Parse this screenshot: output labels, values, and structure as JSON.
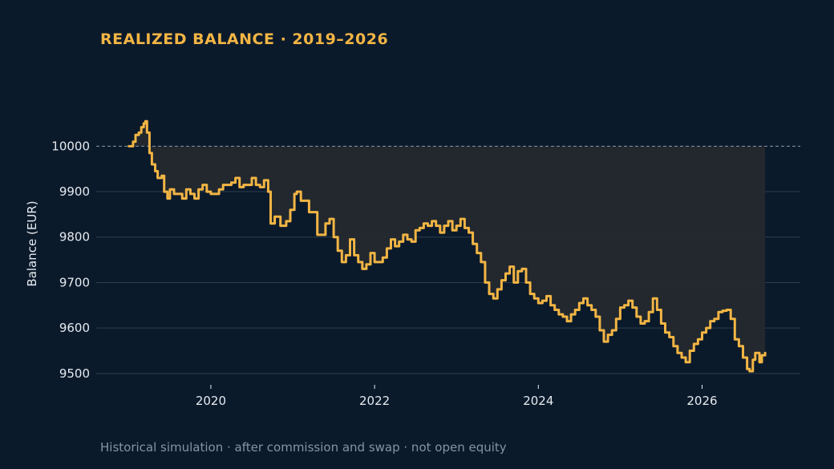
{
  "title": "REALIZED BALANCE · 2019–2026",
  "footnote": "Historical simulation · after commission and swap · not open equity",
  "colors": {
    "background": "#0b1a2b",
    "line": "#f2b544",
    "gap_fill": "#24292e",
    "grid": "#2e3d4e",
    "reference": "#8b97a6",
    "text": "#e6eaef"
  },
  "chart_data": {
    "type": "line",
    "ylabel": "Balance (EUR)",
    "xlabel": "",
    "xlim": [
      2018.6,
      2027.2
    ],
    "ylim": [
      9475,
      10110
    ],
    "x_ticks": [
      2020,
      2022,
      2024,
      2026
    ],
    "y_ticks": [
      9500,
      9600,
      9700,
      9800,
      9900,
      10000
    ],
    "grid": "horizontal",
    "reference_line": 10000,
    "shaded_gap_to_reference": true,
    "step": true,
    "series": [
      {
        "points": [
          [
            2019.0,
            10000
          ],
          [
            2019.05,
            10010
          ],
          [
            2019.08,
            10025
          ],
          [
            2019.12,
            10030
          ],
          [
            2019.15,
            10042
          ],
          [
            2019.18,
            10050
          ],
          [
            2019.2,
            10055
          ],
          [
            2019.22,
            10030
          ],
          [
            2019.25,
            9985
          ],
          [
            2019.28,
            9960
          ],
          [
            2019.32,
            9945
          ],
          [
            2019.35,
            9930
          ],
          [
            2019.4,
            9935
          ],
          [
            2019.43,
            9900
          ],
          [
            2019.47,
            9885
          ],
          [
            2019.5,
            9905
          ],
          [
            2019.55,
            9895
          ],
          [
            2019.6,
            9895
          ],
          [
            2019.65,
            9885
          ],
          [
            2019.7,
            9905
          ],
          [
            2019.75,
            9895
          ],
          [
            2019.8,
            9885
          ],
          [
            2019.85,
            9905
          ],
          [
            2019.9,
            9915
          ],
          [
            2019.95,
            9900
          ],
          [
            2020.0,
            9895
          ],
          [
            2020.1,
            9905
          ],
          [
            2020.15,
            9915
          ],
          [
            2020.25,
            9920
          ],
          [
            2020.3,
            9930
          ],
          [
            2020.35,
            9910
          ],
          [
            2020.4,
            9915
          ],
          [
            2020.5,
            9930
          ],
          [
            2020.55,
            9915
          ],
          [
            2020.6,
            9910
          ],
          [
            2020.65,
            9925
          ],
          [
            2020.7,
            9900
          ],
          [
            2020.73,
            9830
          ],
          [
            2020.78,
            9845
          ],
          [
            2020.85,
            9825
          ],
          [
            2020.92,
            9835
          ],
          [
            2020.97,
            9860
          ],
          [
            2021.02,
            9895
          ],
          [
            2021.05,
            9900
          ],
          [
            2021.1,
            9880
          ],
          [
            2021.2,
            9855
          ],
          [
            2021.3,
            9805
          ],
          [
            2021.4,
            9830
          ],
          [
            2021.45,
            9840
          ],
          [
            2021.5,
            9800
          ],
          [
            2021.55,
            9770
          ],
          [
            2021.6,
            9745
          ],
          [
            2021.65,
            9760
          ],
          [
            2021.7,
            9795
          ],
          [
            2021.75,
            9760
          ],
          [
            2021.8,
            9745
          ],
          [
            2021.85,
            9730
          ],
          [
            2021.9,
            9740
          ],
          [
            2021.95,
            9765
          ],
          [
            2022.0,
            9745
          ],
          [
            2022.1,
            9755
          ],
          [
            2022.15,
            9775
          ],
          [
            2022.2,
            9795
          ],
          [
            2022.25,
            9780
          ],
          [
            2022.3,
            9790
          ],
          [
            2022.35,
            9805
          ],
          [
            2022.4,
            9795
          ],
          [
            2022.45,
            9790
          ],
          [
            2022.5,
            9815
          ],
          [
            2022.55,
            9820
          ],
          [
            2022.6,
            9830
          ],
          [
            2022.65,
            9825
          ],
          [
            2022.7,
            9835
          ],
          [
            2022.75,
            9825
          ],
          [
            2022.8,
            9810
          ],
          [
            2022.85,
            9825
          ],
          [
            2022.9,
            9835
          ],
          [
            2022.95,
            9815
          ],
          [
            2023.0,
            9825
          ],
          [
            2023.05,
            9840
          ],
          [
            2023.1,
            9820
          ],
          [
            2023.15,
            9810
          ],
          [
            2023.2,
            9785
          ],
          [
            2023.25,
            9765
          ],
          [
            2023.3,
            9745
          ],
          [
            2023.35,
            9700
          ],
          [
            2023.4,
            9675
          ],
          [
            2023.45,
            9665
          ],
          [
            2023.5,
            9685
          ],
          [
            2023.55,
            9705
          ],
          [
            2023.6,
            9720
          ],
          [
            2023.65,
            9735
          ],
          [
            2023.7,
            9700
          ],
          [
            2023.75,
            9725
          ],
          [
            2023.8,
            9730
          ],
          [
            2023.85,
            9700
          ],
          [
            2023.9,
            9675
          ],
          [
            2023.95,
            9665
          ],
          [
            2024.0,
            9655
          ],
          [
            2024.05,
            9660
          ],
          [
            2024.1,
            9670
          ],
          [
            2024.15,
            9650
          ],
          [
            2024.2,
            9640
          ],
          [
            2024.25,
            9630
          ],
          [
            2024.3,
            9625
          ],
          [
            2024.35,
            9615
          ],
          [
            2024.4,
            9630
          ],
          [
            2024.45,
            9640
          ],
          [
            2024.5,
            9655
          ],
          [
            2024.55,
            9665
          ],
          [
            2024.6,
            9650
          ],
          [
            2024.65,
            9640
          ],
          [
            2024.7,
            9625
          ],
          [
            2024.75,
            9595
          ],
          [
            2024.8,
            9570
          ],
          [
            2024.85,
            9585
          ],
          [
            2024.9,
            9595
          ],
          [
            2024.95,
            9620
          ],
          [
            2025.0,
            9645
          ],
          [
            2025.05,
            9650
          ],
          [
            2025.1,
            9660
          ],
          [
            2025.15,
            9645
          ],
          [
            2025.2,
            9625
          ],
          [
            2025.25,
            9610
          ],
          [
            2025.3,
            9615
          ],
          [
            2025.35,
            9635
          ],
          [
            2025.4,
            9665
          ],
          [
            2025.45,
            9640
          ],
          [
            2025.5,
            9610
          ],
          [
            2025.55,
            9590
          ],
          [
            2025.6,
            9580
          ],
          [
            2025.65,
            9560
          ],
          [
            2025.7,
            9545
          ],
          [
            2025.75,
            9535
          ],
          [
            2025.8,
            9525
          ],
          [
            2025.85,
            9550
          ],
          [
            2025.9,
            9565
          ],
          [
            2025.95,
            9575
          ],
          [
            2026.0,
            9590
          ],
          [
            2026.05,
            9600
          ],
          [
            2026.1,
            9615
          ],
          [
            2026.15,
            9620
          ],
          [
            2026.2,
            9635
          ],
          [
            2026.25,
            9638
          ],
          [
            2026.3,
            9640
          ],
          [
            2026.35,
            9620
          ],
          [
            2026.4,
            9575
          ],
          [
            2026.45,
            9560
          ],
          [
            2026.5,
            9535
          ],
          [
            2026.55,
            9510
          ],
          [
            2026.58,
            9505
          ],
          [
            2026.62,
            9530
          ],
          [
            2026.65,
            9545
          ],
          [
            2026.7,
            9525
          ],
          [
            2026.73,
            9540
          ],
          [
            2026.77,
            9545
          ]
        ]
      }
    ]
  }
}
